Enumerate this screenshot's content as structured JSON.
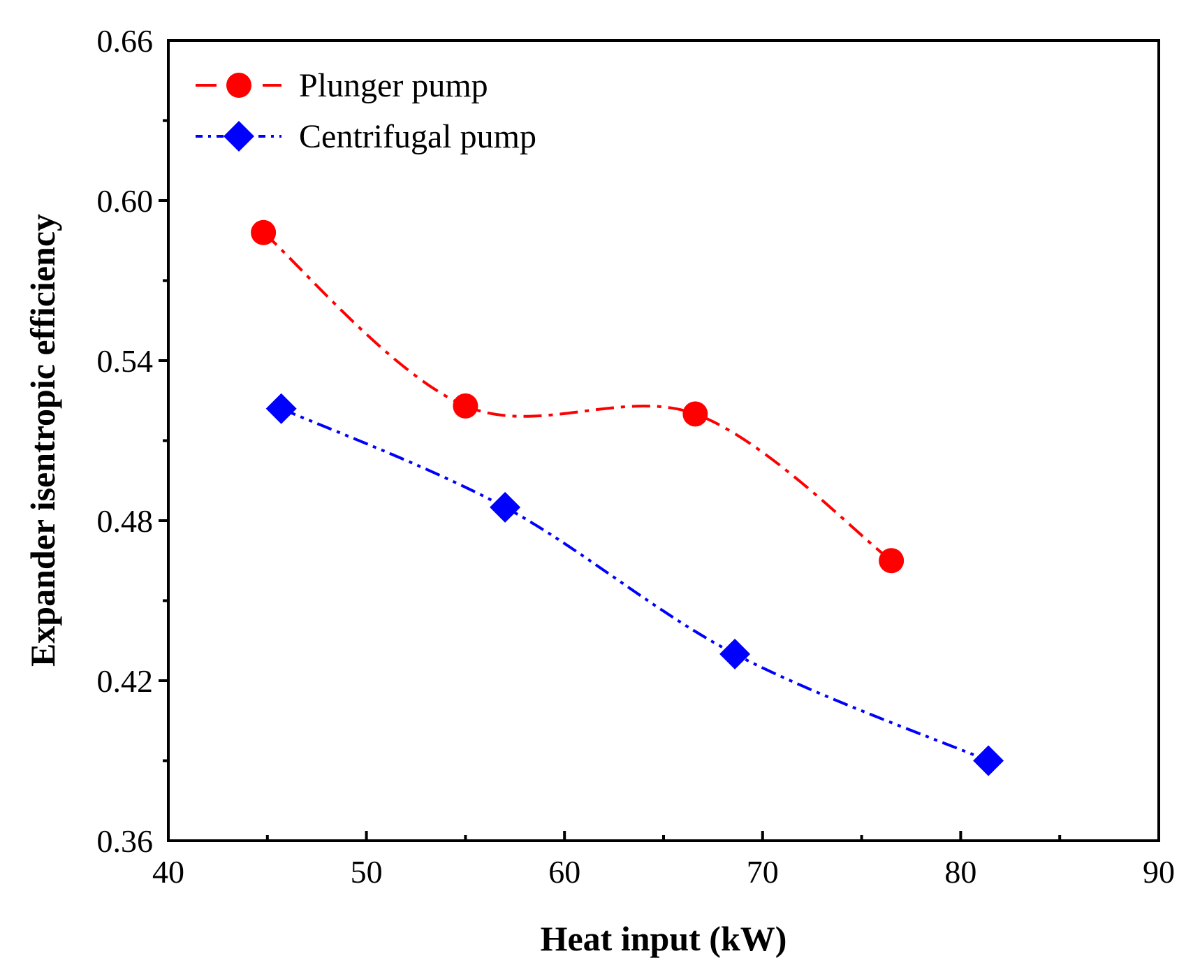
{
  "chart_data": {
    "type": "line",
    "xlabel": "Heat input (kW)",
    "ylabel": "Expander isentropic efficiency",
    "xlim": [
      40,
      90
    ],
    "ylim": [
      0.36,
      0.66
    ],
    "x_ticks": [
      "40",
      "50",
      "60",
      "70",
      "80",
      "90"
    ],
    "y_ticks": [
      "0.36",
      "0.42",
      "0.48",
      "0.54",
      "0.60",
      "0.66"
    ],
    "grid": false,
    "legend_position": "top-left",
    "series": [
      {
        "name": "Plunger pump",
        "color": "#ff0000",
        "marker": "circle",
        "line_style": "dash-dot",
        "x": [
          44.8,
          55.0,
          66.6,
          76.5
        ],
        "y": [
          0.588,
          0.523,
          0.52,
          0.465
        ]
      },
      {
        "name": "Centrifugal pump",
        "color": "#0000ff",
        "marker": "diamond",
        "line_style": "dash-dot-dot",
        "x": [
          45.7,
          57.0,
          68.6,
          81.4
        ],
        "y": [
          0.522,
          0.485,
          0.43,
          0.39
        ]
      }
    ]
  }
}
